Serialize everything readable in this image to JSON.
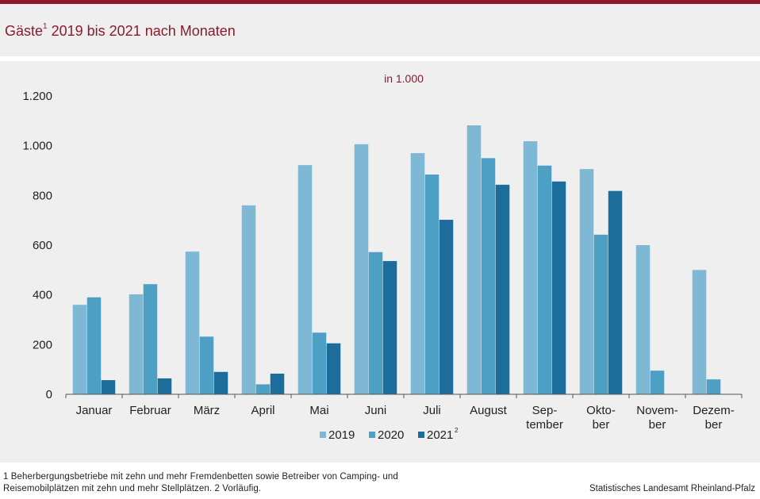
{
  "title": {
    "main": "Gäste",
    "footnote_ref": "1",
    "rest": " 2019 bis 2021 nach Monaten"
  },
  "chart_data": {
    "type": "bar",
    "unit_label": "in 1.000",
    "categories": [
      [
        "Januar"
      ],
      [
        "Februar"
      ],
      [
        "März"
      ],
      [
        "April"
      ],
      [
        "Mai"
      ],
      [
        "Juni"
      ],
      [
        "Juli"
      ],
      [
        "August"
      ],
      [
        "Sep-",
        "tember"
      ],
      [
        "Okto-",
        "ber"
      ],
      [
        "Novem-",
        "ber"
      ],
      [
        "Dezem-",
        "ber"
      ]
    ],
    "series": [
      {
        "name": "2019",
        "color": "#7fb8d4",
        "values": [
          360,
          402,
          574,
          760,
          922,
          1006,
          970,
          1082,
          1018,
          906,
          600,
          500
        ]
      },
      {
        "name": "2020",
        "color": "#4d9fc4",
        "values": [
          390,
          443,
          232,
          40,
          248,
          572,
          884,
          950,
          920,
          642,
          95,
          60
        ]
      },
      {
        "name": "2021",
        "name_sup": "2",
        "color": "#1c6c9c",
        "values": [
          57,
          64,
          90,
          83,
          205,
          536,
          702,
          843,
          856,
          818,
          null,
          null
        ]
      }
    ],
    "ylim": [
      0,
      1200
    ],
    "yticks": [
      0,
      200,
      400,
      600,
      800,
      1000,
      1200
    ],
    "ytick_labels": [
      "0",
      "200",
      "400",
      "600",
      "800",
      "1.000",
      "1.200"
    ],
    "legend_position": "bottom-center",
    "grid": false
  },
  "footnote": "1 Beherbergungsbetriebe  mit zehn und mehr Fremdenbetten  sowie Betreiber von Camping-  und Reisemobilplätzen  mit zehn und mehr Stellplätzen. 2 Vorläufig.",
  "source": "Statistisches Landesamt Rheinland-Pfalz"
}
